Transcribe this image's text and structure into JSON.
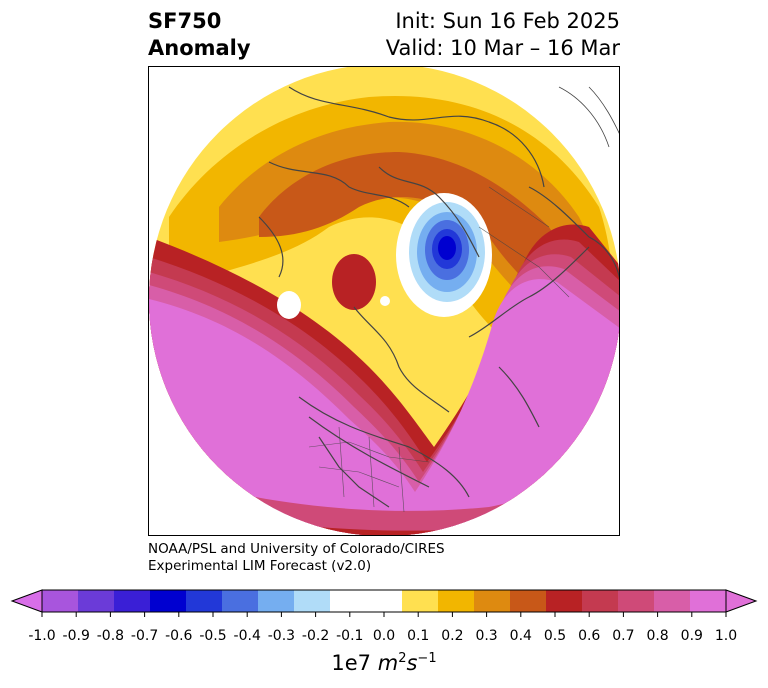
{
  "header": {
    "variable": "SF750",
    "field": "Anomaly",
    "init": "Init: Sun 16 Feb 2025",
    "valid": "Valid: 10 Mar – 16 Mar"
  },
  "credit": {
    "line1": "NOAA/PSL and University of Colorado/CIRES",
    "line2": "Experimental LIM Forecast (v2.0)"
  },
  "colorbar": {
    "unit_label": "1e7 m²s⁻¹",
    "ticks": [
      "-1.0",
      "-0.9",
      "-0.8",
      "-0.7",
      "-0.6",
      "-0.5",
      "-0.4",
      "-0.3",
      "-0.2",
      "-0.1",
      "0.0",
      "0.1",
      "0.2",
      "0.3",
      "0.4",
      "0.5",
      "0.6",
      "0.7",
      "0.8",
      "0.9",
      "1.0"
    ],
    "colors": [
      "#a855dd",
      "#6b3bd8",
      "#3a1fd6",
      "#0000d0",
      "#2238d8",
      "#4a6fe0",
      "#75aef0",
      "#b0dcf8",
      "#ffffff",
      "#ffffff",
      "#ffe050",
      "#f2b600",
      "#de8a10",
      "#c85818",
      "#b82224",
      "#c43a50",
      "#cf4a78",
      "#d85ea8",
      "#e070d8"
    ],
    "under_color": "#d86ee8",
    "over_color": "#e070d8"
  },
  "map": {
    "projection": "north-polar-stereographic",
    "colors": {
      "strong_positive": "#e070d8",
      "positive_mid": "#b82224",
      "positive_low": "#f2b600",
      "negative": "#0000d0",
      "coastline": "#444444"
    }
  }
}
